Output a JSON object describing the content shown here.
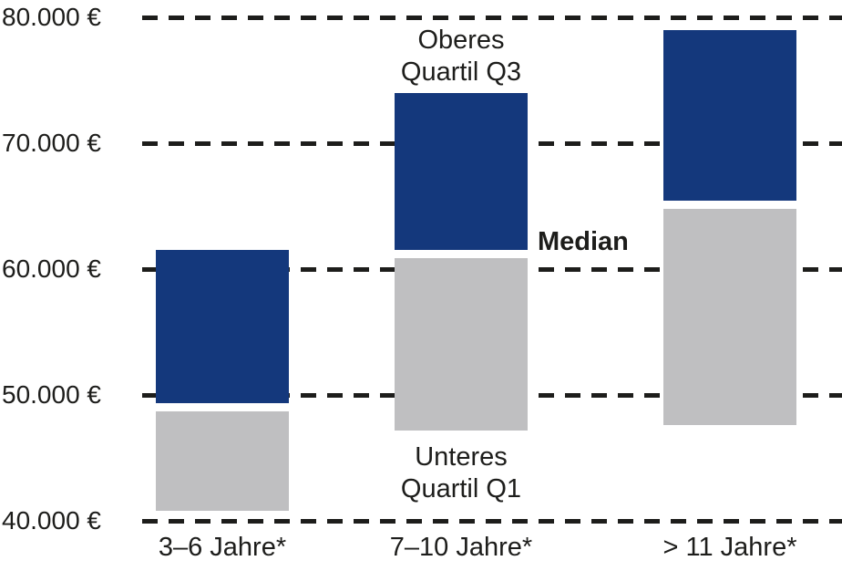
{
  "chart_data": {
    "type": "bar",
    "subtype": "floating-quartile-range-bars",
    "title": "",
    "xlabel": "",
    "ylabel": "",
    "categories": [
      "3–6 Jahre*",
      "7–10 Jahre*",
      "> 11 Jahre*"
    ],
    "values": [
      {
        "category": "3–6 Jahre*",
        "q1": 40800,
        "median": 49000,
        "q3": 61500
      },
      {
        "category": "7–10 Jahre*",
        "q1": 47200,
        "median": 61200,
        "q3": 74000
      },
      {
        "category": "> 11 Jahre*",
        "q1": 47600,
        "median": 65100,
        "q3": 79000
      }
    ],
    "segments": [
      {
        "name": "Unteres Quartil Q1 bis Median",
        "color": "#bfbfc1"
      },
      {
        "name": "Median bis Oberes Quartil Q3",
        "color": "#14387c"
      }
    ],
    "ylim": [
      40000,
      80000
    ],
    "ytick_step": 10000,
    "ytick_labels": [
      "80.000 €",
      "70.000 €",
      "60.000 €",
      "50.000 €",
      "40.000 €"
    ],
    "grid": "horizontal-dashed",
    "legend_position": "none",
    "annotations": {
      "q3_line1": "Oberes",
      "q3_line2": "Quartil Q3",
      "q1_line1": "Unteres",
      "q1_line2": "Quartil Q1",
      "median": "Median"
    }
  },
  "colors": {
    "bar_upper": "#14387c",
    "bar_lower": "#bfbfc1",
    "grid": "#1d1d1b",
    "text": "#1d1d1b",
    "background": "#ffffff"
  }
}
